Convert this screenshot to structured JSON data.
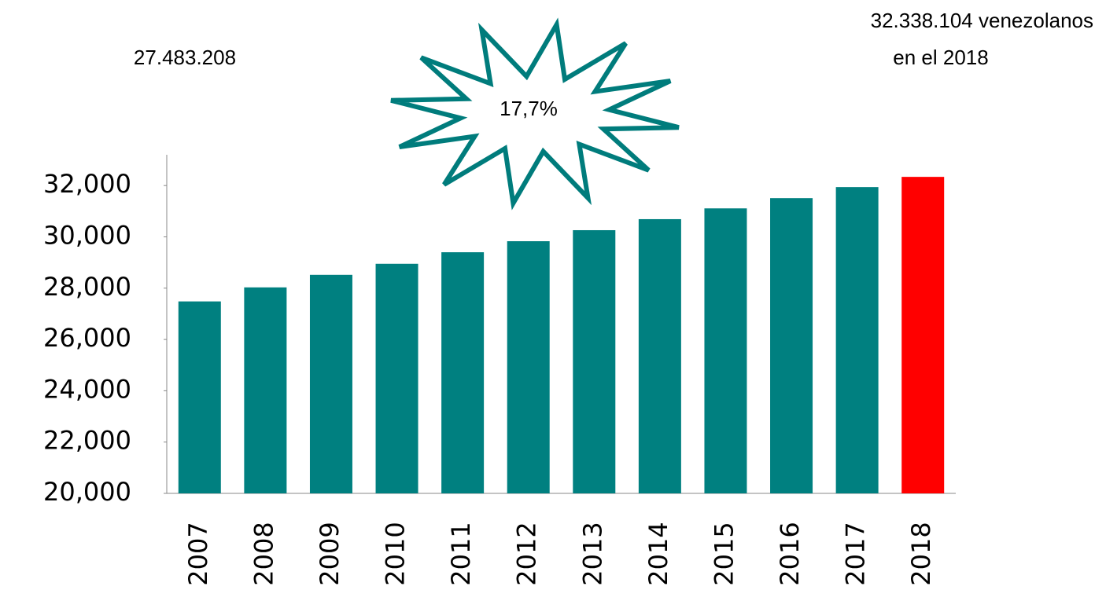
{
  "chart_data": {
    "type": "bar",
    "categories": [
      "2007",
      "2008",
      "2009",
      "2010",
      "2011",
      "2012",
      "2013",
      "2014",
      "2015",
      "2016",
      "2017",
      "2018"
    ],
    "values": [
      27483.208,
      28030,
      28520,
      28950,
      29400,
      29830,
      30260,
      30690,
      31110,
      31510,
      31940,
      32338.104
    ],
    "colors": [
      "#008080",
      "#008080",
      "#008080",
      "#008080",
      "#008080",
      "#008080",
      "#008080",
      "#008080",
      "#008080",
      "#008080",
      "#008080",
      "#ff0000"
    ],
    "ylim": [
      20000,
      33200
    ],
    "yticks": [
      {
        "value": 20000,
        "label": "20,000"
      },
      {
        "value": 22000,
        "label": "22,000"
      },
      {
        "value": 24000,
        "label": "24,000"
      },
      {
        "value": 26000,
        "label": "26,000"
      },
      {
        "value": 28000,
        "label": "28,000"
      },
      {
        "value": 30000,
        "label": "30,000"
      },
      {
        "value": 32000,
        "label": "32,000"
      }
    ],
    "annotations": [
      "27.483.208",
      "32.338.104 venezolanos",
      "en el 2018",
      "17,7%"
    ]
  }
}
